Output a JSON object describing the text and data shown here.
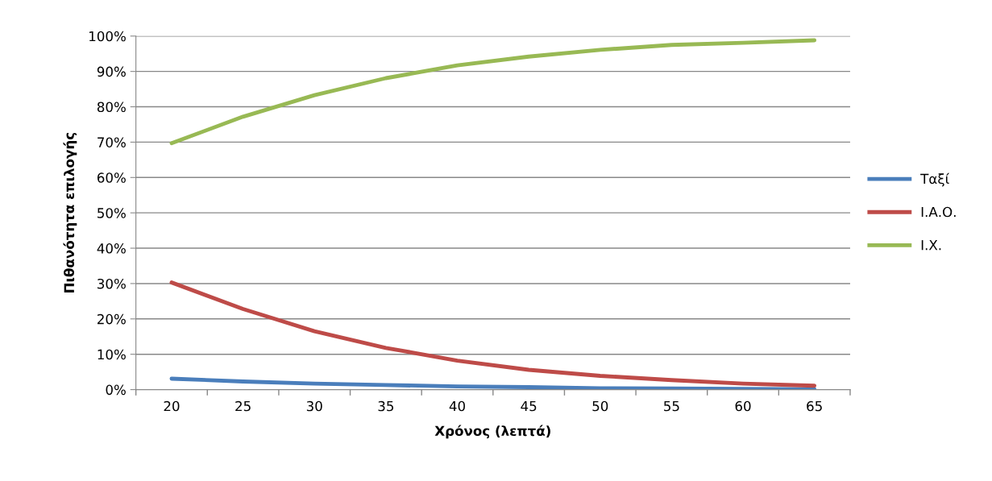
{
  "chart_data": {
    "type": "line",
    "xlabel": "Χρόνος (λεπτά)",
    "ylabel": "Πιθανότητα επιλογής",
    "categories": [
      "20",
      "25",
      "30",
      "35",
      "40",
      "45",
      "50",
      "55",
      "60",
      "65"
    ],
    "series": [
      {
        "name": "Ταξί",
        "color": "#4a7ebb",
        "values": [
          3.1,
          2.3,
          1.7,
          1.3,
          0.9,
          0.7,
          0.4,
          0.3,
          0.2,
          0.1
        ]
      },
      {
        "name": "Ι.Α.Ο.",
        "color": "#be4b48",
        "values": [
          30.3,
          22.8,
          16.5,
          11.8,
          8.2,
          5.6,
          3.9,
          2.7,
          1.7,
          1.1
        ]
      },
      {
        "name": "Ι.Χ.",
        "color": "#98b954",
        "values": [
          69.7,
          77.2,
          83.3,
          88.1,
          91.7,
          94.2,
          96.1,
          97.5,
          98.1,
          98.8
        ]
      }
    ],
    "ylim": [
      0,
      100
    ],
    "yticks": [
      {
        "value": 0,
        "label": "0%"
      },
      {
        "value": 10,
        "label": "10%"
      },
      {
        "value": 20,
        "label": "20%"
      },
      {
        "value": 30,
        "label": "30%"
      },
      {
        "value": 40,
        "label": "40%"
      },
      {
        "value": 50,
        "label": "50%"
      },
      {
        "value": 60,
        "label": "60%"
      },
      {
        "value": 70,
        "label": "70%"
      },
      {
        "value": 80,
        "label": "80%"
      },
      {
        "value": 90,
        "label": "90%"
      },
      {
        "value": 100,
        "label": "100%"
      }
    ],
    "grid": "y",
    "legend": "right",
    "marker": "none",
    "line_style": "solid"
  }
}
